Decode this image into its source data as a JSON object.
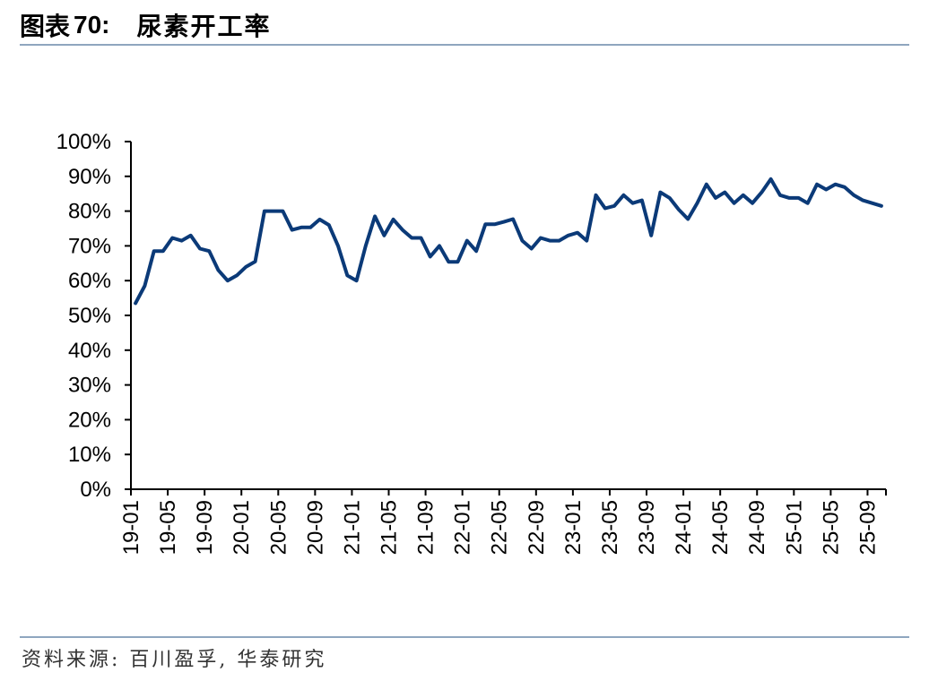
{
  "header": {
    "label": "图表",
    "number": "70:",
    "title": "尿素开工率"
  },
  "source": "资料来源: 百川盈孚, 华泰研究",
  "chart_data": {
    "type": "line",
    "title": "尿素开工率",
    "xlabel": "",
    "ylabel": "",
    "ylim": [
      0,
      100
    ],
    "y_ticks": [
      "0%",
      "10%",
      "20%",
      "30%",
      "40%",
      "50%",
      "60%",
      "70%",
      "80%",
      "90%",
      "100%"
    ],
    "x_tick_labels": [
      "19-01",
      "19-05",
      "19-09",
      "20-01",
      "20-05",
      "20-09",
      "21-01",
      "21-05",
      "21-09",
      "22-01",
      "22-05",
      "22-09",
      "23-01",
      "23-05",
      "23-09",
      "24-01",
      "24-05",
      "24-09",
      "25-01",
      "25-05",
      "25-09"
    ],
    "legend": "none",
    "grid": false,
    "series": [
      {
        "color": "#0b3a78",
        "x_start": "19-01",
        "x_step": "month",
        "values": [
          53.5,
          58.5,
          68.5,
          68.5,
          72.3,
          71.5,
          73,
          69.2,
          68.5,
          63,
          60,
          61.5,
          64,
          65.5,
          80,
          80,
          80,
          74.6,
          75.3,
          75.3,
          77.6,
          76,
          70,
          61.5,
          60,
          70,
          78.5,
          73,
          77.6,
          74.6,
          72.3,
          72.3,
          66.9,
          70,
          65.4,
          65.4,
          71.5,
          68.5,
          76.2,
          76.2,
          76.9,
          77.7,
          71.5,
          69.2,
          72.3,
          71.5,
          71.5,
          73,
          73.8,
          71.5,
          84.6,
          80.8,
          81.5,
          84.6,
          82.3,
          83.1,
          73,
          85.4,
          83.8,
          80.4,
          77.7,
          82.3,
          87.7,
          83.8,
          85.4,
          82.3,
          84.6,
          82.3,
          85.4,
          89.2,
          84.6,
          83.8,
          83.8,
          82.3,
          87.7,
          86.2,
          87.7,
          86.9,
          84.6,
          83.1,
          82.3,
          81.5
        ]
      }
    ]
  }
}
